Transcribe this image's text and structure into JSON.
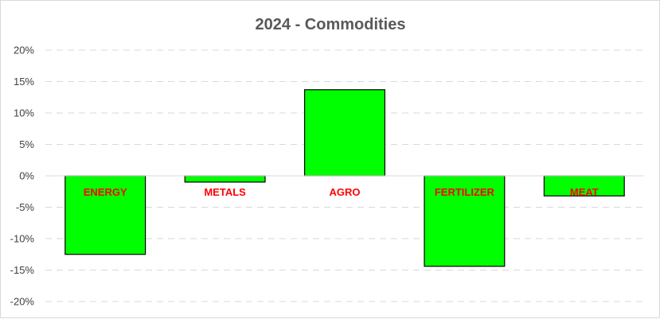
{
  "chart_data": {
    "type": "bar",
    "title": "2024 - Commodities",
    "categories": [
      "ENERGY",
      "METALS",
      "AGRO",
      "FERTILIZER",
      "MEAT"
    ],
    "values": [
      -12.5,
      -1.0,
      13.7,
      -14.4,
      -3.2
    ],
    "ylim": [
      -20,
      20
    ],
    "ytick_step": 5,
    "ytick_labels": [
      "20%",
      "15%",
      "10%",
      "5%",
      "0%",
      "-5%",
      "-10%",
      "-15%",
      "-20%"
    ],
    "xlabel": "",
    "ylabel": "",
    "grid": true,
    "legend": "none",
    "bar_color": "#00ff00",
    "label_color": "#ff0000"
  }
}
